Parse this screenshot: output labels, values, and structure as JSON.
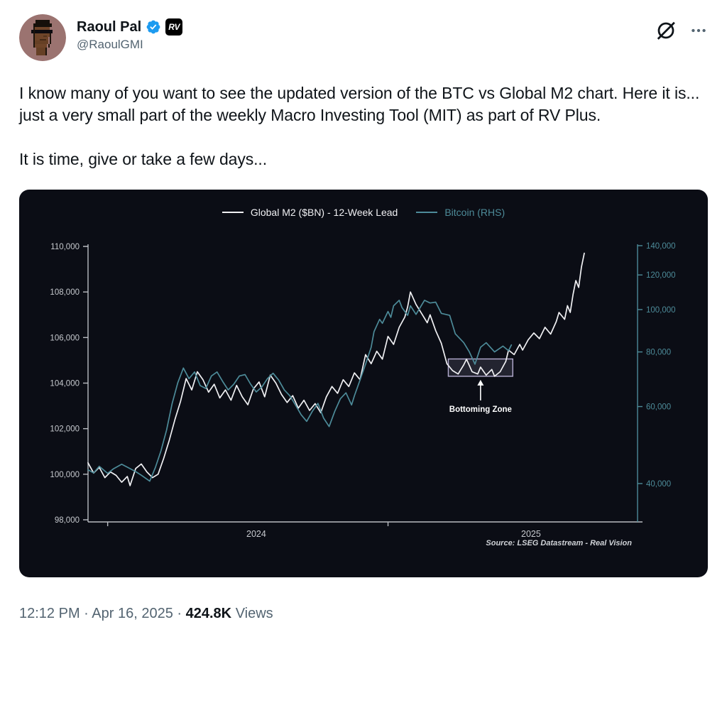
{
  "header": {
    "display_name": "Raoul Pal",
    "handle": "@RaoulGMI",
    "org_badge": "RV"
  },
  "tweet": {
    "paragraph1": "I know many of you want to see the updated version of the BTC vs Global M2 chart. Here it is... just a very small part of the weekly Macro Investing Tool (MIT) as part of RV Plus.",
    "paragraph2": "It is time, give or take a few days..."
  },
  "footer": {
    "time": "12:12 PM",
    "separator1": "·",
    "date": "Apr 16, 2025",
    "separator2": "·",
    "views_count": "424.8K",
    "views_label": "Views"
  },
  "colors": {
    "text_primary": "#0f1419",
    "text_secondary": "#536471",
    "verified_blue": "#1d9bf0",
    "chart_background": "#0b0d15",
    "m2_line": "#f0f0f3",
    "bitcoin_line": "#4d8b99",
    "axis_gray": "#c6c9ce",
    "annotation_lavender": "#b6aed2"
  },
  "chart_data": {
    "type": "line",
    "title": "",
    "source": "Source: LSEG Datastream - Real Vision",
    "legend": [
      {
        "label": "Global M2 ($BN) - 12-Week Lead",
        "color": "#f0f0f3"
      },
      {
        "label": "Bitcoin (RHS)",
        "color": "#4d8b99"
      }
    ],
    "x_axis": {
      "range": [
        2023.93,
        2025.89
      ],
      "year_ticks": [
        2024,
        2025
      ],
      "tick_labels": [
        "2024",
        "2025"
      ],
      "label_positions": [
        2024.53,
        2025.51
      ]
    },
    "left_axis": {
      "scale": "linear",
      "range": [
        98000,
        110000
      ],
      "ticks": [
        110000,
        108000,
        106000,
        104000,
        102000,
        100000,
        98000
      ],
      "labels": [
        "110,000",
        "108,000",
        "106,000",
        "104,000",
        "102,000",
        "100,000",
        "98,000"
      ],
      "color": "#c6c9ce"
    },
    "right_axis": {
      "scale": "log",
      "ticks": [
        140000,
        120000,
        100000,
        80000,
        60000,
        40000
      ],
      "labels": [
        "140,000",
        "120,000",
        "100,000",
        "80,000",
        "60,000",
        "40,000"
      ],
      "color": "#4d8b99"
    },
    "annotation": {
      "label": "Bottoming Zone",
      "box": {
        "x1": 2025.215,
        "x2": 2025.445,
        "y1": 104300,
        "y2": 105060
      },
      "arrow_x": 2025.33
    },
    "series": [
      {
        "name": "Global M2 ($BN) - 12-Week Lead",
        "axis": "left",
        "color": "#f0f0f3",
        "points": [
          [
            2023.93,
            100500
          ],
          [
            2023.95,
            100050
          ],
          [
            2023.97,
            100300
          ],
          [
            2023.99,
            99850
          ],
          [
            2024.01,
            100100
          ],
          [
            2024.03,
            99950
          ],
          [
            2024.05,
            99650
          ],
          [
            2024.07,
            99900
          ],
          [
            2024.08,
            99500
          ],
          [
            2024.1,
            100250
          ],
          [
            2024.12,
            100450
          ],
          [
            2024.14,
            100100
          ],
          [
            2024.16,
            99850
          ],
          [
            2024.18,
            100000
          ],
          [
            2024.2,
            100700
          ],
          [
            2024.22,
            101500
          ],
          [
            2024.24,
            102400
          ],
          [
            2024.26,
            103200
          ],
          [
            2024.28,
            104200
          ],
          [
            2024.3,
            103700
          ],
          [
            2024.32,
            104500
          ],
          [
            2024.34,
            104150
          ],
          [
            2024.36,
            103600
          ],
          [
            2024.38,
            103950
          ],
          [
            2024.4,
            103350
          ],
          [
            2024.42,
            103700
          ],
          [
            2024.44,
            103250
          ],
          [
            2024.46,
            103900
          ],
          [
            2024.48,
            103400
          ],
          [
            2024.5,
            103050
          ],
          [
            2024.52,
            103750
          ],
          [
            2024.54,
            104050
          ],
          [
            2024.56,
            103400
          ],
          [
            2024.58,
            104350
          ],
          [
            2024.6,
            104000
          ],
          [
            2024.62,
            103500
          ],
          [
            2024.64,
            103150
          ],
          [
            2024.66,
            103450
          ],
          [
            2024.68,
            102900
          ],
          [
            2024.7,
            103250
          ],
          [
            2024.72,
            102800
          ],
          [
            2024.74,
            103100
          ],
          [
            2024.76,
            102700
          ],
          [
            2024.78,
            103400
          ],
          [
            2024.8,
            103850
          ],
          [
            2024.82,
            103550
          ],
          [
            2024.84,
            104150
          ],
          [
            2024.86,
            103850
          ],
          [
            2024.88,
            104450
          ],
          [
            2024.9,
            104150
          ],
          [
            2024.92,
            105250
          ],
          [
            2024.94,
            104850
          ],
          [
            2024.96,
            105400
          ],
          [
            2024.98,
            105050
          ],
          [
            2025.0,
            106050
          ],
          [
            2025.02,
            105700
          ],
          [
            2025.04,
            106450
          ],
          [
            2025.06,
            106900
          ],
          [
            2025.07,
            107350
          ],
          [
            2025.08,
            108000
          ],
          [
            2025.1,
            107450
          ],
          [
            2025.12,
            107050
          ],
          [
            2025.14,
            106650
          ],
          [
            2025.15,
            107000
          ],
          [
            2025.17,
            106300
          ],
          [
            2025.19,
            105750
          ],
          [
            2025.21,
            104850
          ],
          [
            2025.23,
            104550
          ],
          [
            2025.25,
            104400
          ],
          [
            2025.27,
            104800
          ],
          [
            2025.28,
            105050
          ],
          [
            2025.3,
            104500
          ],
          [
            2025.32,
            104400
          ],
          [
            2025.33,
            104700
          ],
          [
            2025.35,
            104350
          ],
          [
            2025.37,
            104600
          ],
          [
            2025.38,
            104300
          ],
          [
            2025.4,
            104500
          ],
          [
            2025.42,
            104950
          ],
          [
            2025.43,
            105450
          ],
          [
            2025.45,
            105250
          ],
          [
            2025.47,
            105700
          ],
          [
            2025.48,
            105450
          ],
          [
            2025.5,
            105900
          ],
          [
            2025.52,
            106200
          ],
          [
            2025.54,
            105950
          ],
          [
            2025.56,
            106450
          ],
          [
            2025.58,
            106150
          ],
          [
            2025.6,
            106700
          ],
          [
            2025.61,
            107100
          ],
          [
            2025.63,
            106800
          ],
          [
            2025.64,
            107400
          ],
          [
            2025.65,
            107100
          ],
          [
            2025.66,
            107900
          ],
          [
            2025.67,
            108500
          ],
          [
            2025.68,
            108200
          ],
          [
            2025.69,
            109100
          ],
          [
            2025.7,
            109700
          ]
        ]
      },
      {
        "name": "Bitcoin (RHS)",
        "axis": "right",
        "color": "#4d8b99",
        "points": [
          [
            2023.93,
            43000
          ],
          [
            2023.95,
            42300
          ],
          [
            2023.97,
            43800
          ],
          [
            2024.0,
            42200
          ],
          [
            2024.02,
            43200
          ],
          [
            2024.05,
            44300
          ],
          [
            2024.07,
            43600
          ],
          [
            2024.1,
            42600
          ],
          [
            2024.12,
            41800
          ],
          [
            2024.15,
            40500
          ],
          [
            2024.17,
            43500
          ],
          [
            2024.19,
            47500
          ],
          [
            2024.21,
            53000
          ],
          [
            2024.23,
            61000
          ],
          [
            2024.25,
            68000
          ],
          [
            2024.27,
            73500
          ],
          [
            2024.29,
            69500
          ],
          [
            2024.31,
            72000
          ],
          [
            2024.33,
            67000
          ],
          [
            2024.35,
            66000
          ],
          [
            2024.37,
            70500
          ],
          [
            2024.39,
            72000
          ],
          [
            2024.41,
            68500
          ],
          [
            2024.43,
            65500
          ],
          [
            2024.45,
            67500
          ],
          [
            2024.47,
            70500
          ],
          [
            2024.49,
            71000
          ],
          [
            2024.51,
            67500
          ],
          [
            2024.53,
            64800
          ],
          [
            2024.55,
            66500
          ],
          [
            2024.57,
            69500
          ],
          [
            2024.59,
            71500
          ],
          [
            2024.61,
            69000
          ],
          [
            2024.63,
            65500
          ],
          [
            2024.65,
            63500
          ],
          [
            2024.67,
            60500
          ],
          [
            2024.69,
            57500
          ],
          [
            2024.71,
            55500
          ],
          [
            2024.73,
            58500
          ],
          [
            2024.75,
            61000
          ],
          [
            2024.77,
            56500
          ],
          [
            2024.79,
            54000
          ],
          [
            2024.81,
            58500
          ],
          [
            2024.83,
            62500
          ],
          [
            2024.85,
            64500
          ],
          [
            2024.87,
            60500
          ],
          [
            2024.88,
            63500
          ],
          [
            2024.9,
            69000
          ],
          [
            2024.92,
            75000
          ],
          [
            2024.94,
            82000
          ],
          [
            2024.95,
            89000
          ],
          [
            2024.97,
            95000
          ],
          [
            2024.98,
            93000
          ],
          [
            2025.0,
            99000
          ],
          [
            2025.01,
            96000
          ],
          [
            2025.02,
            102000
          ],
          [
            2025.04,
            105000
          ],
          [
            2025.05,
            101000
          ],
          [
            2025.07,
            97000
          ],
          [
            2025.08,
            102000
          ],
          [
            2025.1,
            97500
          ],
          [
            2025.13,
            105000
          ],
          [
            2025.15,
            103500
          ],
          [
            2025.17,
            104000
          ],
          [
            2025.19,
            98000
          ],
          [
            2025.22,
            97000
          ],
          [
            2025.24,
            88000
          ],
          [
            2025.27,
            84000
          ],
          [
            2025.29,
            80000
          ],
          [
            2025.31,
            75000
          ],
          [
            2025.33,
            82000
          ],
          [
            2025.35,
            84000
          ],
          [
            2025.38,
            80000
          ],
          [
            2025.41,
            82500
          ],
          [
            2025.43,
            80500
          ],
          [
            2025.44,
            83000
          ]
        ]
      }
    ]
  }
}
